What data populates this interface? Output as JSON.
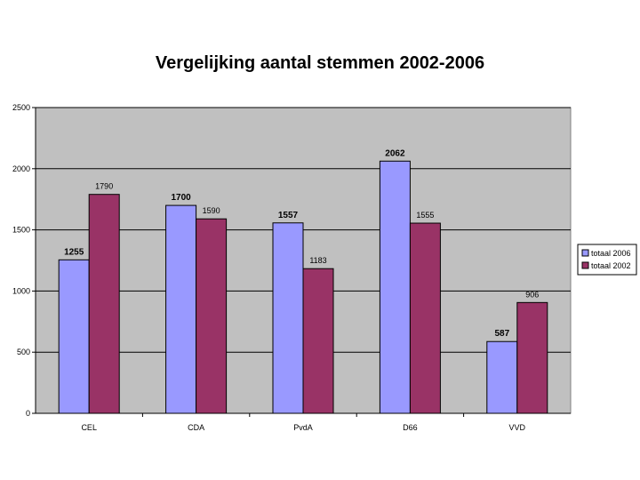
{
  "chart_data": {
    "type": "bar",
    "title": "Vergelijking aantal stemmen 2002-2006",
    "xlabel": "",
    "ylabel": "",
    "categories": [
      "CEL",
      "CDA",
      "PvdA",
      "D66",
      "VVD"
    ],
    "series": [
      {
        "name": "totaal 2006",
        "values": [
          1255,
          1700,
          1557,
          2062,
          587
        ],
        "color": "#9999ff",
        "label_bold": true
      },
      {
        "name": "totaal 2002",
        "values": [
          1790,
          1590,
          1183,
          1555,
          906
        ],
        "color": "#993366",
        "label_bold": false
      }
    ],
    "ylim": [
      0,
      2500
    ],
    "yticks": [
      0,
      500,
      1000,
      1500,
      2000,
      2500
    ],
    "grid": true,
    "plot_background": "#c0c0c0",
    "legend_position": "right"
  }
}
